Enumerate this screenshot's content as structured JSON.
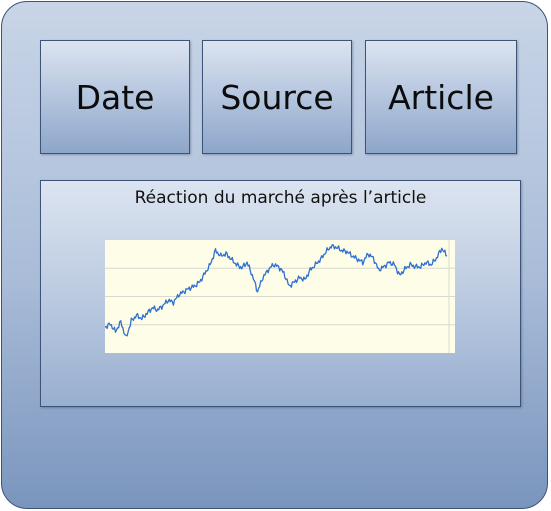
{
  "boxes": {
    "date": "Date",
    "source": "Source",
    "article": "Article"
  },
  "panel": {
    "title": "Réaction du marché après l’article"
  },
  "colors": {
    "line": "#2f6fd0",
    "grid": "#d9d9cf",
    "chart_background": "#fefde8"
  },
  "chart_data": {
    "type": "line",
    "title": "",
    "xlabel": "",
    "ylabel": "",
    "grid": true,
    "ylim": [
      0,
      100
    ],
    "series": [
      {
        "values": [
          22,
          25,
          18,
          27,
          12,
          28,
          33,
          30,
          35,
          40,
          38,
          42,
          47,
          45,
          52,
          55,
          58,
          60,
          64,
          72,
          80,
          93,
          88,
          90,
          85,
          80,
          77,
          82,
          70,
          55,
          68,
          75,
          80,
          78,
          72,
          60,
          64,
          68,
          66,
          75,
          80,
          85,
          92,
          97,
          96,
          93,
          92,
          88,
          85,
          82,
          90,
          86,
          75,
          78,
          82,
          80,
          70,
          76,
          80,
          78,
          78,
          82,
          80,
          86,
          95,
          88
        ]
      }
    ]
  }
}
